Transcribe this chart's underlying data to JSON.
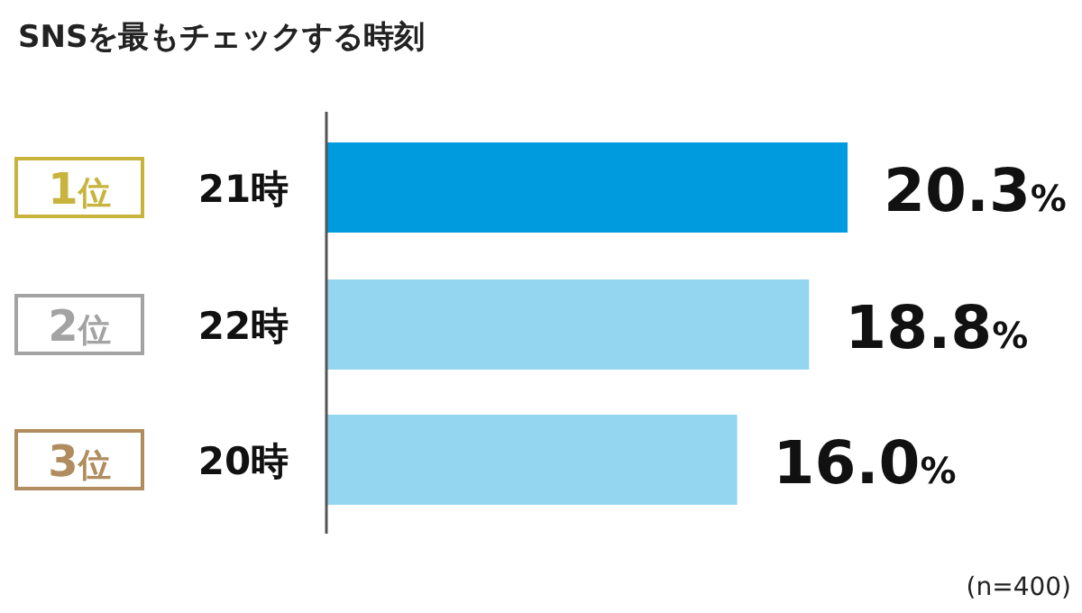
{
  "chart_data": {
    "type": "bar",
    "orientation": "horizontal",
    "title": "SNSを最もチェックする時刻",
    "categories": [
      "21時",
      "22時",
      "20時"
    ],
    "values": [
      20.3,
      18.8,
      16.0
    ],
    "colors": [
      "#009ade",
      "#94d5f0",
      "#94d5f0"
    ],
    "value_labels": [
      "20.3%",
      "18.8%",
      "16.0%"
    ],
    "annotations": [
      "1位",
      "2位",
      "3位",
      "(n=400)"
    ]
  }
}
